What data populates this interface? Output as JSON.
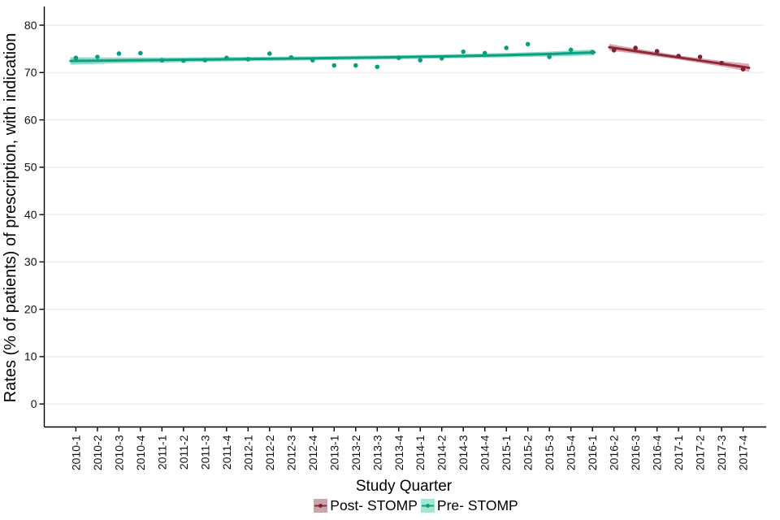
{
  "chart_data": {
    "type": "scatter",
    "title": "",
    "xlabel": "Study Quarter",
    "ylabel": "Rates (% of patients) of prescription, with indication",
    "x_categories": [
      "2010-1",
      "2010-2",
      "2010-3",
      "2010-4",
      "2011-1",
      "2011-2",
      "2011-3",
      "2011-4",
      "2012-1",
      "2012-2",
      "2012-3",
      "2012-4",
      "2013-1",
      "2013-2",
      "2013-3",
      "2013-4",
      "2014-1",
      "2014-2",
      "2014-3",
      "2014-4",
      "2015-1",
      "2015-2",
      "2015-3",
      "2015-4",
      "2016-1",
      "2016-2",
      "2016-3",
      "2016-4",
      "2017-1",
      "2017-2",
      "2017-3",
      "2017-4"
    ],
    "yticks": [
      0,
      10,
      20,
      30,
      40,
      50,
      60,
      70,
      80
    ],
    "ylim": [
      0,
      80
    ],
    "grid": "horizontal-major",
    "legend_position": "bottom-center",
    "colors": {
      "background": "#ffffff",
      "axis": "#000000",
      "gridline": "#ececec",
      "text": "#111111"
    },
    "series": [
      {
        "name": "Post- STOMP",
        "slug": "post-stomp",
        "start_index": 25,
        "categories": [
          "2016-2",
          "2016-3",
          "2016-4",
          "2017-1",
          "2017-2",
          "2017-3",
          "2017-4"
        ],
        "values": [
          74.7,
          75.2,
          74.5,
          73.5,
          73.3,
          72.0,
          70.7
        ],
        "trend_type": "linear",
        "trend": [
          {
            "i": 24.78,
            "v": 75.35,
            "w": 0.72
          },
          {
            "i": 26.0,
            "v": 74.53,
            "w": 0.55
          },
          {
            "i": 28.0,
            "v": 73.19,
            "w": 0.44
          },
          {
            "i": 30.0,
            "v": 71.86,
            "w": 0.58
          },
          {
            "i": 31.28,
            "v": 71.0,
            "w": 0.85
          }
        ],
        "line_color": "#8c2a38",
        "point_color": "#7e2231",
        "band_color": "#d9aab2",
        "legend_key_bg": "#c9a6ab"
      },
      {
        "name": "Pre- STOMP",
        "slug": "pre-stomp",
        "start_index": 0,
        "categories": [
          "2010-1",
          "2010-2",
          "2010-3",
          "2010-4",
          "2011-1",
          "2011-2",
          "2011-3",
          "2011-4",
          "2012-1",
          "2012-2",
          "2012-3",
          "2012-4",
          "2013-1",
          "2013-2",
          "2013-3",
          "2013-4",
          "2014-1",
          "2014-2",
          "2014-3",
          "2014-4",
          "2015-1",
          "2015-2",
          "2015-3",
          "2015-4",
          "2016-1"
        ],
        "values": [
          73.1,
          73.3,
          74.0,
          74.1,
          72.6,
          72.5,
          72.6,
          73.1,
          72.8,
          74.0,
          73.2,
          72.6,
          71.5,
          71.5,
          71.2,
          73.1,
          72.6,
          73.0,
          74.4,
          74.1,
          75.2,
          76.0,
          73.3,
          74.8,
          74.3
        ],
        "trend_type": "loess",
        "trend": [
          {
            "i": -0.25,
            "v": 72.45,
            "w": 0.8
          },
          {
            "i": 2.0,
            "v": 72.55,
            "w": 0.6
          },
          {
            "i": 5.0,
            "v": 72.7,
            "w": 0.5
          },
          {
            "i": 8.0,
            "v": 72.85,
            "w": 0.45
          },
          {
            "i": 11.0,
            "v": 73.0,
            "w": 0.42
          },
          {
            "i": 14.0,
            "v": 73.18,
            "w": 0.42
          },
          {
            "i": 17.0,
            "v": 73.4,
            "w": 0.42
          },
          {
            "i": 20.0,
            "v": 73.68,
            "w": 0.46
          },
          {
            "i": 22.0,
            "v": 73.9,
            "w": 0.52
          },
          {
            "i": 24.1,
            "v": 74.25,
            "w": 0.62
          }
        ],
        "line_color": "#0aa183",
        "point_color": "#0a9e81",
        "band_color": "#8edcc9",
        "legend_key_bg": "#a5e5d2"
      }
    ]
  }
}
